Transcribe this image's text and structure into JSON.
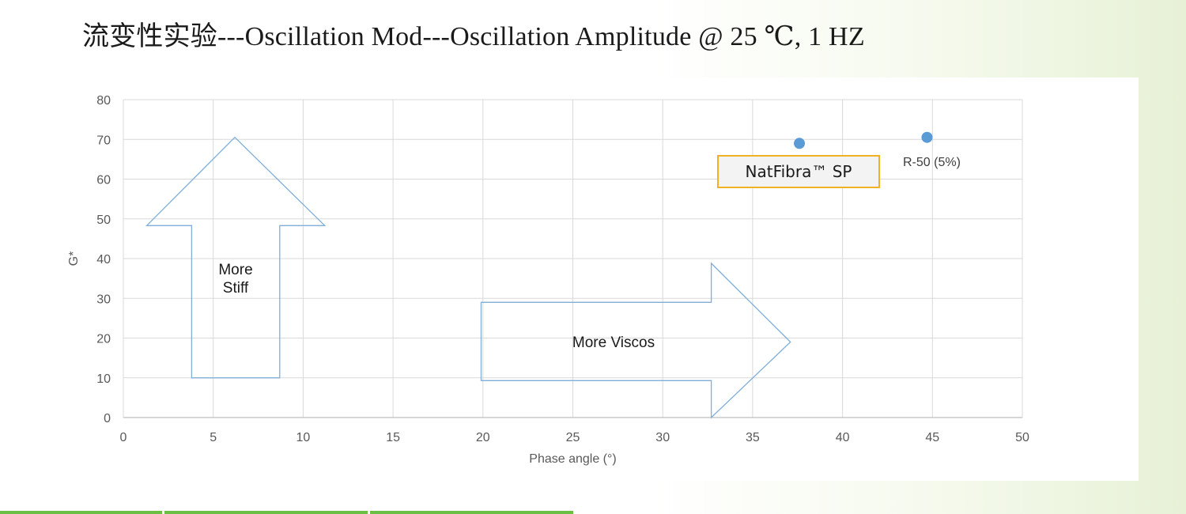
{
  "slide": {
    "title": "流变性实验---Oscillation Mod---Oscillation Amplitude @ 25 ℃, 1 HZ"
  },
  "chart_data": {
    "type": "scatter",
    "title": "",
    "xlabel": "Phase angle (°)",
    "ylabel": "G*",
    "xlim": [
      0,
      50
    ],
    "ylim": [
      0,
      80
    ],
    "x_ticks": [
      "0",
      "5",
      "10",
      "15",
      "20",
      "25",
      "30",
      "35",
      "40",
      "45",
      "50"
    ],
    "y_ticks": [
      "0",
      "10",
      "20",
      "30",
      "40",
      "50",
      "60",
      "70",
      "80"
    ],
    "grid": true,
    "legend": "none",
    "points": [
      {
        "label": "NatFibra™ SP",
        "x": 37.6,
        "y": 69
      },
      {
        "label": "R-50 (5%)",
        "x": 44.7,
        "y": 70.5
      }
    ],
    "annotations": [
      {
        "text_lines": [
          "More",
          "Stiff"
        ],
        "shape": "up-arrow"
      },
      {
        "text_lines": [
          "More Viscos"
        ],
        "shape": "right-arrow"
      }
    ],
    "colors": {
      "point": "#5b9bd5",
      "arrow_outline": "#7faed8",
      "grid": "#d9d9d9",
      "callout_border": "#f2b124",
      "accent_green": "#6cbf45"
    }
  }
}
